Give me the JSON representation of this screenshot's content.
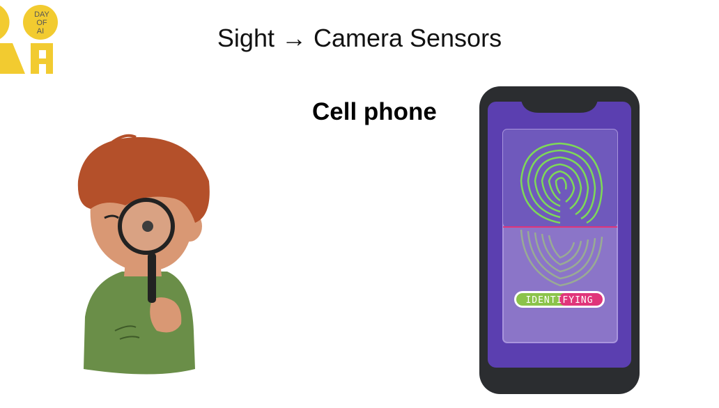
{
  "logo": {
    "text_line1": "DAY",
    "text_line2": "OF",
    "text_line3": "AI"
  },
  "title": "Sight → Camera Sensors",
  "subtitle": "Cell phone",
  "phone": {
    "status_label": "IDENTIFYING"
  },
  "colors": {
    "logo_yellow": "#F2CB30",
    "phone_body": "#2B2D30",
    "phone_screen": "#5B3FB0",
    "fingerprint_green": "#7ED957",
    "status_green": "#8BC34A",
    "status_pink": "#E0357A"
  }
}
